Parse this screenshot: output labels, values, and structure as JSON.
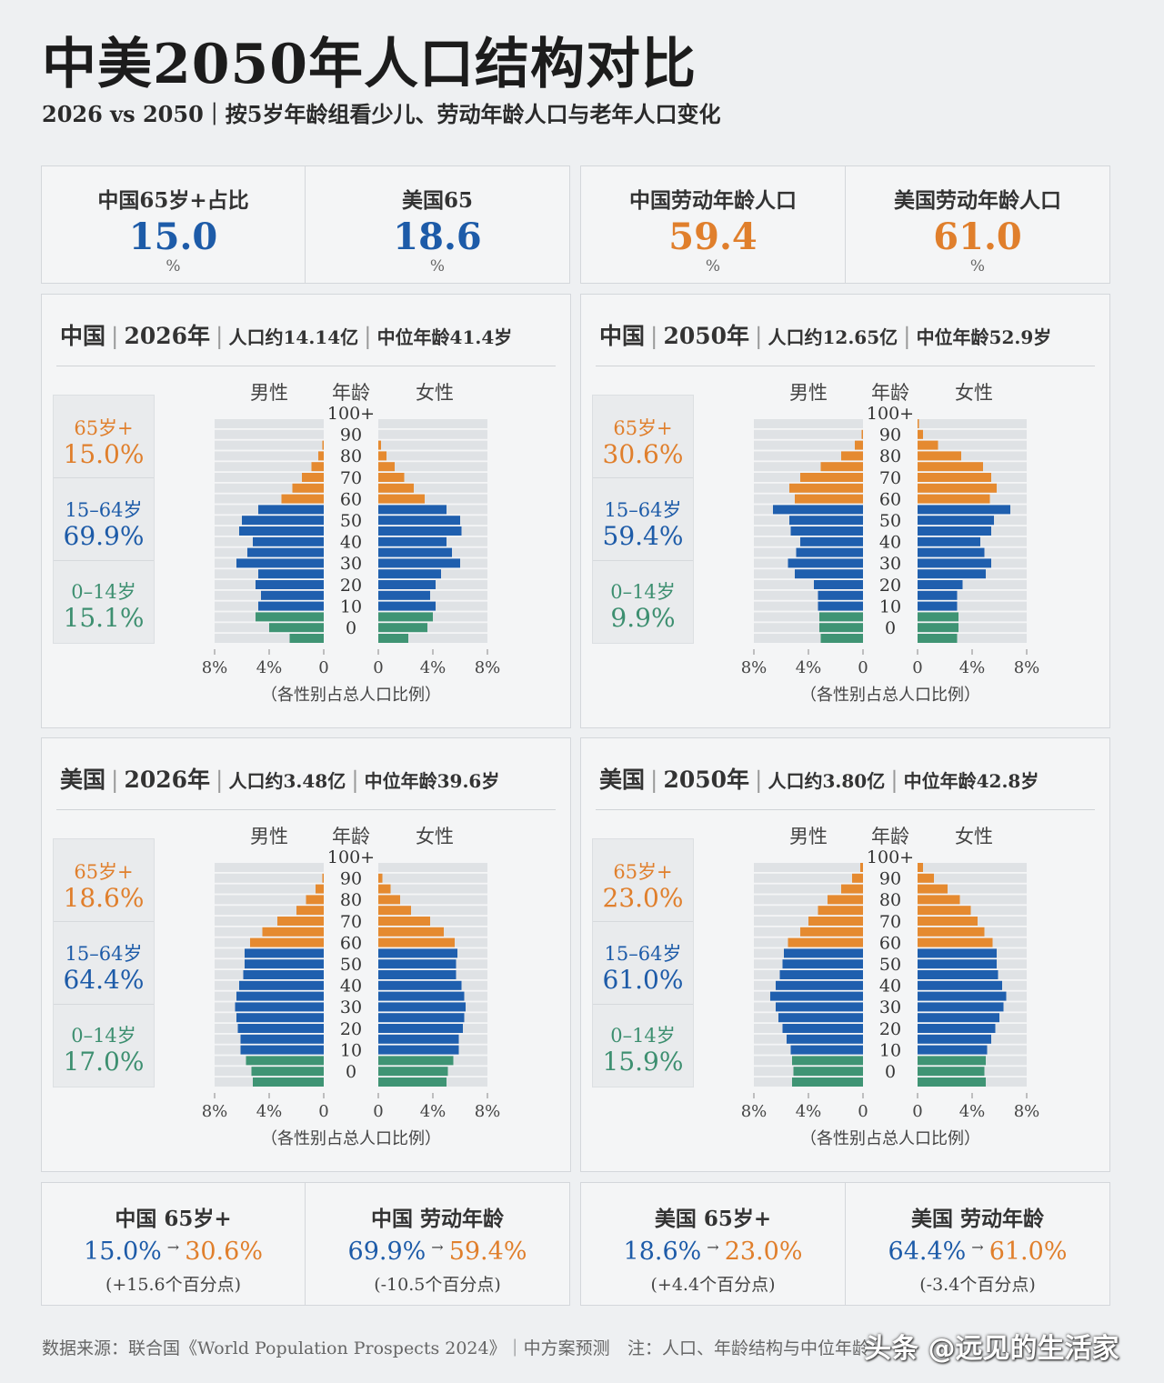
{
  "header": {
    "title": "中美2050年人口结构对比",
    "subtitle": "2026 vs 2050｜按5岁年龄组看少儿、劳动年龄人口与老年人口变化"
  },
  "kpis": [
    {
      "label": "中国65岁+占比",
      "value": "15.0",
      "unit": "%",
      "color": "#1d5ba8"
    },
    {
      "label": "美国65",
      "value": "18.6",
      "unit": "%",
      "color": "#1d5ba8"
    },
    {
      "label": "中国劳动年龄人口",
      "value": "59.4",
      "unit": "%",
      "color": "#e07f2c"
    },
    {
      "label": "美国劳动年龄人口",
      "value": "61.0",
      "unit": "%",
      "color": "#e07f2c"
    }
  ],
  "colors": {
    "elderly": "#e58a30",
    "working": "#1f5fae",
    "children": "#3f9474",
    "grid": "#dfe2e5"
  },
  "pyramid_labels": {
    "male": "男性",
    "age": "年龄",
    "female": "女性",
    "xlabel": "（各性别占总人口比例）",
    "left_ticks": [
      "8%",
      "4%",
      "0"
    ],
    "right_ticks": [
      "0",
      "4%",
      "8%"
    ],
    "age_ticks": [
      "100+",
      "90",
      "80",
      "70",
      "60",
      "50",
      "40",
      "30",
      "20",
      "10",
      "0"
    ],
    "seg_elderly": "65岁+",
    "seg_working": "15–64岁",
    "seg_children": "0–14岁"
  },
  "panels": [
    {
      "country": "中国",
      "year": "2026年",
      "pop": "人口约14.14亿",
      "median": "中位年龄41.4岁",
      "elderly_pct": "15.0%",
      "working_pct": "69.9%",
      "children_pct": "15.1%"
    },
    {
      "country": "中国",
      "year": "2050年",
      "pop": "人口约12.65亿",
      "median": "中位年龄52.9岁",
      "elderly_pct": "30.6%",
      "working_pct": "59.4%",
      "children_pct": "9.9%"
    },
    {
      "country": "美国",
      "year": "2026年",
      "pop": "人口约3.48亿",
      "median": "中位年龄39.6岁",
      "elderly_pct": "18.6%",
      "working_pct": "64.4%",
      "children_pct": "17.0%"
    },
    {
      "country": "美国",
      "year": "2050年",
      "pop": "人口约3.80亿",
      "median": "中位年龄42.8岁",
      "elderly_pct": "23.0%",
      "working_pct": "61.0%",
      "children_pct": "15.9%"
    }
  ],
  "chart_data": [
    {
      "type": "bar",
      "title": "中国 2026年",
      "xlabel": "（各性别占总人口比例）",
      "ylabel": "年龄",
      "xlim": [
        -8,
        8
      ],
      "categories": [
        "0-4",
        "5-9",
        "10-14",
        "15-19",
        "20-24",
        "25-29",
        "30-34",
        "35-39",
        "40-44",
        "45-49",
        "50-54",
        "55-59",
        "60-64",
        "65-69",
        "70-74",
        "75-79",
        "80-84",
        "85-89",
        "90-94",
        "95-99",
        "100+"
      ],
      "series": [
        {
          "name": "男性",
          "values": [
            2.5,
            4.0,
            5.0,
            4.8,
            4.6,
            5.0,
            4.8,
            6.4,
            5.6,
            5.2,
            6.2,
            6.0,
            4.8,
            3.1,
            2.3,
            1.6,
            0.9,
            0.4,
            0.1,
            0.0,
            0.0
          ]
        },
        {
          "name": "女性",
          "values": [
            2.2,
            3.6,
            4.0,
            4.2,
            3.8,
            4.2,
            4.6,
            6.0,
            5.4,
            5.0,
            6.1,
            6.0,
            5.0,
            3.4,
            2.6,
            1.9,
            1.2,
            0.6,
            0.2,
            0.0,
            0.0
          ]
        }
      ]
    },
    {
      "type": "bar",
      "title": "中国 2050年",
      "xlabel": "（各性别占总人口比例）",
      "ylabel": "年龄",
      "xlim": [
        -8,
        8
      ],
      "categories": [
        "0-4",
        "5-9",
        "10-14",
        "15-19",
        "20-24",
        "25-29",
        "30-34",
        "35-39",
        "40-44",
        "45-49",
        "50-54",
        "55-59",
        "60-64",
        "65-69",
        "70-74",
        "75-79",
        "80-84",
        "85-89",
        "90-94",
        "95-99",
        "100+"
      ],
      "series": [
        {
          "name": "男性",
          "values": [
            3.1,
            3.2,
            3.2,
            3.3,
            3.3,
            3.6,
            5.0,
            5.5,
            4.9,
            4.6,
            5.3,
            5.4,
            6.6,
            5.0,
            5.4,
            4.6,
            3.1,
            1.6,
            0.6,
            0.1,
            0.0
          ]
        },
        {
          "name": "女性",
          "values": [
            2.9,
            3.0,
            3.0,
            2.9,
            2.9,
            3.3,
            5.0,
            5.4,
            4.9,
            4.6,
            5.4,
            5.6,
            6.8,
            5.3,
            5.8,
            5.4,
            4.8,
            3.2,
            1.5,
            0.4,
            0.1
          ]
        }
      ]
    },
    {
      "type": "bar",
      "title": "美国 2026年",
      "xlabel": "（各性别占总人口比例）",
      "ylabel": "年龄",
      "xlim": [
        -8,
        8
      ],
      "categories": [
        "0-4",
        "5-9",
        "10-14",
        "15-19",
        "20-24",
        "25-29",
        "30-34",
        "35-39",
        "40-44",
        "45-49",
        "50-54",
        "55-59",
        "60-64",
        "65-69",
        "70-74",
        "75-79",
        "80-84",
        "85-89",
        "90-94",
        "95-99",
        "100+"
      ],
      "series": [
        {
          "name": "男性",
          "values": [
            5.2,
            5.3,
            5.7,
            6.1,
            6.1,
            6.3,
            6.4,
            6.5,
            6.4,
            6.2,
            5.9,
            5.8,
            5.8,
            5.4,
            4.5,
            3.4,
            2.0,
            1.3,
            0.6,
            0.1,
            0.0
          ]
        },
        {
          "name": "女性",
          "values": [
            5.0,
            5.1,
            5.5,
            5.9,
            5.9,
            6.2,
            6.3,
            6.4,
            6.3,
            6.1,
            5.7,
            5.7,
            5.8,
            5.6,
            4.8,
            3.8,
            2.4,
            1.6,
            0.9,
            0.3,
            0.0
          ]
        }
      ]
    },
    {
      "type": "bar",
      "title": "美国 2050年",
      "xlabel": "（各性别占总人口比例）",
      "ylabel": "年龄",
      "xlim": [
        -8,
        8
      ],
      "categories": [
        "0-4",
        "5-9",
        "10-14",
        "15-19",
        "20-24",
        "25-29",
        "30-34",
        "35-39",
        "40-44",
        "45-49",
        "50-54",
        "55-59",
        "60-64",
        "65-69",
        "70-74",
        "75-79",
        "80-84",
        "85-89",
        "90-94",
        "95-99",
        "100+"
      ],
      "series": [
        {
          "name": "男性",
          "values": [
            5.2,
            5.1,
            5.2,
            5.3,
            5.6,
            5.9,
            6.2,
            6.4,
            6.8,
            6.4,
            6.1,
            5.9,
            5.8,
            5.5,
            4.6,
            4.0,
            3.3,
            2.6,
            1.6,
            0.8,
            0.2
          ]
        },
        {
          "name": "女性",
          "values": [
            5.0,
            4.9,
            5.0,
            5.1,
            5.4,
            5.7,
            6.0,
            6.3,
            6.5,
            6.2,
            5.9,
            5.8,
            5.8,
            5.5,
            4.9,
            4.4,
            3.9,
            3.1,
            2.2,
            1.2,
            0.4
          ]
        }
      ]
    }
  ],
  "comparisons": [
    {
      "label": "中国 65岁+",
      "from": "15.0%",
      "to": "30.6%",
      "arrow": "→",
      "delta": "(+15.6个百分点)"
    },
    {
      "label": "中国 劳动年龄",
      "from": "69.9%",
      "to": "59.4%",
      "arrow": "→",
      "delta": "(-10.5个百分点)"
    },
    {
      "label": "美国 65岁+",
      "from": "18.6%",
      "to": "23.0%",
      "arrow": "→",
      "delta": "(+4.4个百分点)"
    },
    {
      "label": "美国 劳动年龄",
      "from": "64.4%",
      "to": "61.0%",
      "arrow": "→",
      "delta": "(-3.4个百分点)"
    }
  ],
  "footer": {
    "source": "数据来源：联合国《World Population Prospects 2024》｜中方案预测",
    "note": "注：人口、年龄结构与中位年龄",
    "watermark": "头条 @远见的生活家"
  }
}
